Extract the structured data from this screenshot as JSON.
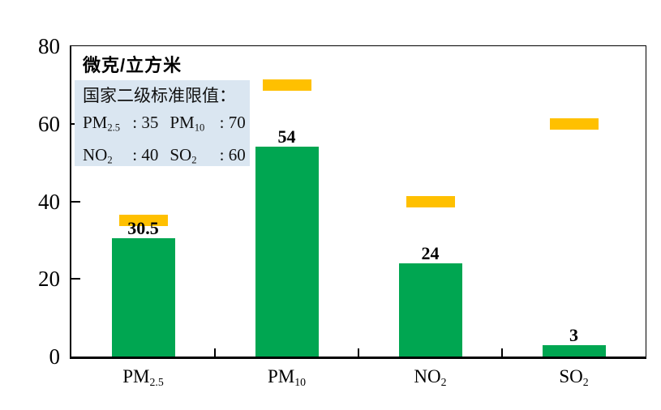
{
  "canvas": {
    "background": "#FFFFFF"
  },
  "chart": {
    "unit_title": "微克/立方米",
    "legend": {
      "heading": "国家二级标准限值：",
      "background": "#DAE6F1",
      "items": [
        {
          "base": "PM",
          "sub": "2.5",
          "sep": " : ",
          "value": "35"
        },
        {
          "base": "PM",
          "sub": "10",
          "sep": " : ",
          "value": "70"
        },
        {
          "base": "NO",
          "sub": "2",
          "sep": " : ",
          "value": "40"
        },
        {
          "base": "SO",
          "sub": "2",
          "sep": " : ",
          "value": "60"
        }
      ]
    },
    "bar_color": "#00A651",
    "limit_color": "#FFC000",
    "axis_color": "#000000"
  },
  "chart_data": {
    "type": "bar",
    "title": "微克/立方米",
    "categories": [
      "PM2.5",
      "PM10",
      "NO2",
      "SO2"
    ],
    "category_labels": [
      {
        "base": "PM",
        "sub": "2.5"
      },
      {
        "base": "PM",
        "sub": "10"
      },
      {
        "base": "NO",
        "sub": "2"
      },
      {
        "base": "SO",
        "sub": "2"
      }
    ],
    "series": [
      {
        "type": "bar",
        "color": "#00A651",
        "values": [
          30.5,
          54,
          24,
          3
        ]
      },
      {
        "name": "国家二级标准限值",
        "type": "limit-marker",
        "color": "#FFC000",
        "values": [
          35,
          70,
          40,
          60
        ]
      }
    ],
    "value_labels": [
      "30.5",
      "54",
      "24",
      "3"
    ],
    "ylabel": "微克/立方米",
    "ylim": [
      0,
      80
    ],
    "yticks": [
      0,
      20,
      40,
      60,
      80
    ],
    "ytick_labels": [
      "0",
      "20",
      "40",
      "60",
      "80"
    ],
    "grid": false,
    "legend_position": "top-left"
  }
}
